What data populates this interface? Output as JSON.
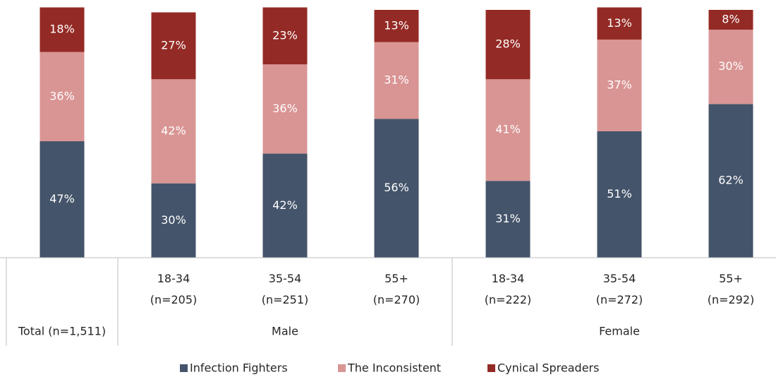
{
  "chart_data": {
    "type": "stacked_bar",
    "categories": [
      null,
      "18-34\n(n=205)",
      "35-54\n(n=251)",
      "55+\n(n=270)",
      "18-34\n(n=222)",
      "35-54\n(n=272)",
      "55+\n(n=292)"
    ],
    "groups": [
      {
        "name": "Total (n=1,511)",
        "bars": 1
      },
      {
        "name": "Male",
        "bars": 3
      },
      {
        "name": "Female",
        "bars": 3
      }
    ],
    "series": [
      {
        "name": "Infection Fighters",
        "color": "#44546a",
        "values": [
          47,
          30,
          42,
          56,
          31,
          51,
          62
        ],
        "value_labels": [
          "47%",
          "30%",
          "42%",
          "56%",
          "31%",
          "51%",
          "62%"
        ]
      },
      {
        "name": "The Inconsistent",
        "color": "#d99594",
        "values": [
          36,
          42,
          36,
          31,
          41,
          37,
          30
        ],
        "value_labels": [
          "36%",
          "42%",
          "36%",
          "31%",
          "41%",
          "37%",
          "30%"
        ]
      },
      {
        "name": "Cynical Spreaders",
        "color": "#942a25",
        "values": [
          18,
          27,
          23,
          13,
          28,
          13,
          8
        ],
        "value_labels": [
          "18%",
          "27%",
          "23%",
          "13%",
          "28%",
          "13%",
          "8%"
        ]
      }
    ],
    "legend": "bottom"
  }
}
